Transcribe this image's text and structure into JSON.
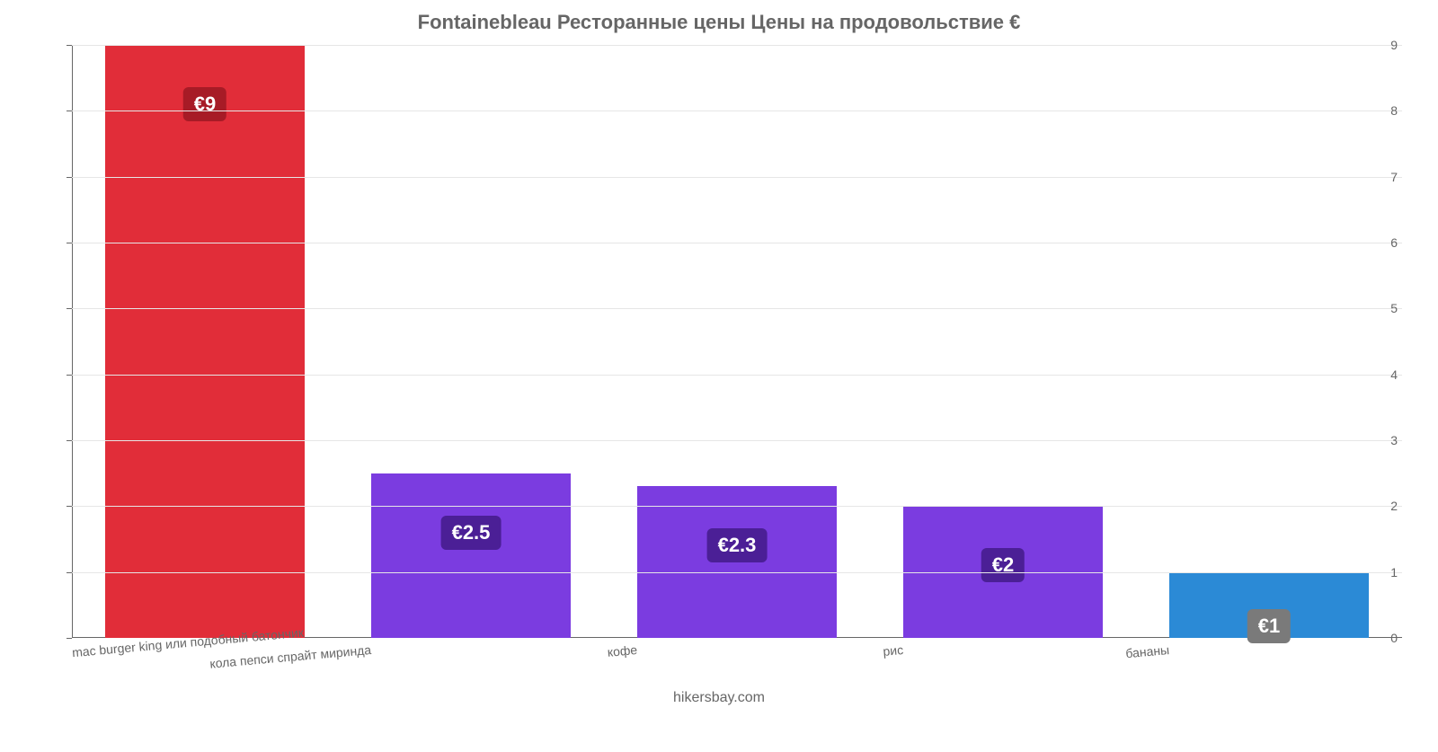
{
  "chart": {
    "type": "bar",
    "title": "Fontainebleau Ресторанные цены Цены на продовольствие €",
    "title_fontsize": 22,
    "title_color": "#666666",
    "footer": "hikersbay.com",
    "footer_color": "#666666",
    "background_color": "#ffffff",
    "grid_color": "#e6e6e6",
    "axis_color": "#666666",
    "label_color": "#666666",
    "ylim_min": 0,
    "ylim_max": 9,
    "ytick_step": 1,
    "bar_width_pct": 15,
    "bar_label_fontsize": 22,
    "xlabel_fontsize": 14,
    "xlabel_rotation_deg": -5,
    "bars": [
      {
        "category": "mac burger king или подобный батончик",
        "value": 9.0,
        "value_label": "€9",
        "color": "#e12d39",
        "badge_bg": "#a71b26"
      },
      {
        "category": "кола пепси спрайт миринда",
        "value": 2.5,
        "value_label": "€2.5",
        "color": "#7b3ce0",
        "badge_bg": "#4b1f96"
      },
      {
        "category": "кофе",
        "value": 2.3,
        "value_label": "€2.3",
        "color": "#7b3ce0",
        "badge_bg": "#4b1f96"
      },
      {
        "category": "рис",
        "value": 2.0,
        "value_label": "€2",
        "color": "#7b3ce0",
        "badge_bg": "#4b1f96"
      },
      {
        "category": "бананы",
        "value": 1.0,
        "value_label": "€1",
        "color": "#2b8ad6",
        "badge_bg": "#7a7a7a"
      }
    ]
  }
}
